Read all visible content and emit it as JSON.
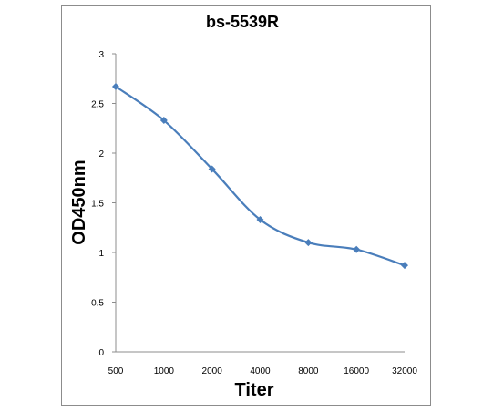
{
  "chart_data": {
    "type": "line",
    "title": "bs-5539R",
    "xlabel": "Titer",
    "ylabel": "OD450nm",
    "categories": [
      "500",
      "1000",
      "2000",
      "4000",
      "8000",
      "16000",
      "32000"
    ],
    "series": [
      {
        "values": [
          2.67,
          2.33,
          1.84,
          1.33,
          1.1,
          1.03,
          0.87
        ]
      }
    ],
    "ylim": [
      0,
      3
    ],
    "yticks": [
      "0",
      "0.5",
      "1",
      "1.5",
      "2",
      "2.5",
      "3"
    ],
    "grid": false,
    "legend": "none",
    "colors": {
      "series": "#4a7ebb"
    }
  }
}
